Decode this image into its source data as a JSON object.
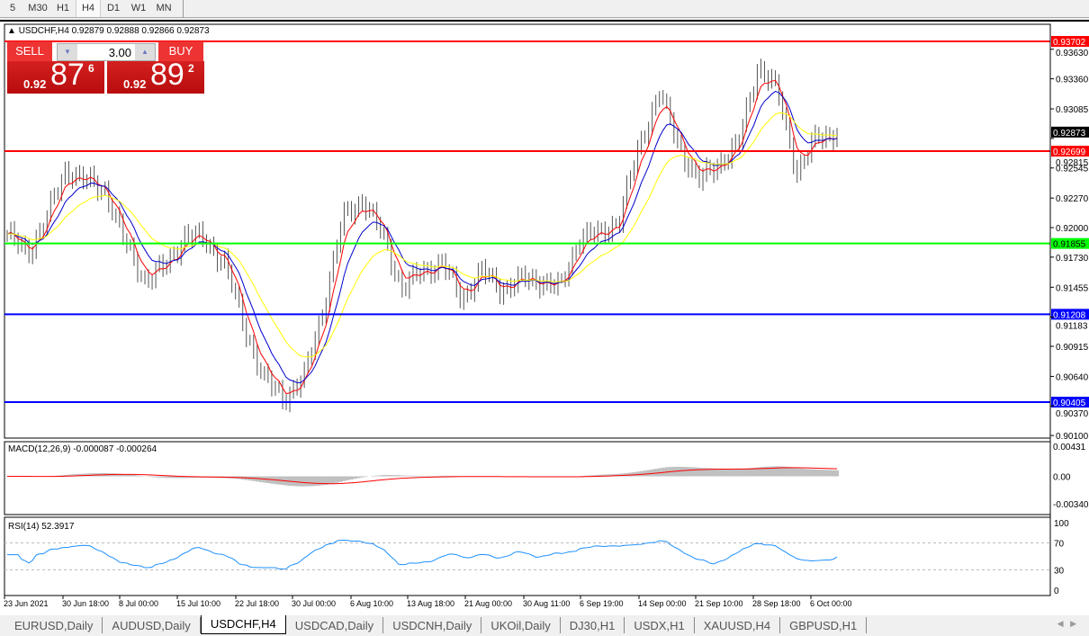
{
  "timeframes": [
    "5",
    "M30",
    "H1",
    "H4",
    "D1",
    "W1",
    "MN"
  ],
  "active_timeframe": "H4",
  "chart": {
    "symbol_line": "USDCHF,H4  0.92879 0.92888 0.92866 0.92873"
  },
  "trade_panel": {
    "sell_label": "SELL",
    "buy_label": "BUY",
    "lot": "3.00",
    "sell": {
      "prefix": "0.92",
      "big": "87",
      "sup": "6"
    },
    "buy": {
      "prefix": "0.92",
      "big": "89",
      "sup": "2"
    }
  },
  "chart_data": {
    "type": "candlestick",
    "price_axis_ticks": [
      "0.93630",
      "0.93360",
      "0.93085",
      "0.92815",
      "0.92545",
      "0.92270",
      "0.92000",
      "0.91730",
      "0.91455",
      "0.91183",
      "0.90915",
      "0.90640",
      "0.90370",
      "0.90100"
    ],
    "price_axis_values": [
      0.9363,
      0.9336,
      0.93085,
      0.92815,
      0.92545,
      0.9227,
      0.92,
      0.9173,
      0.91455,
      0.91183,
      0.90915,
      0.9064,
      0.9037,
      0.901
    ],
    "ylim": [
      0.901,
      0.9385
    ],
    "x_labels": [
      "23 Jun 2021",
      "30 Jun 18:00",
      "8 Jul 00:00",
      "15 Jul 10:00",
      "22 Jul 18:00",
      "30 Jul 00:00",
      "6 Aug 10:00",
      "13 Aug 18:00",
      "21 Aug 00:00",
      "30 Aug 11:00",
      "6 Sep 19:00",
      "14 Sep 00:00",
      "21 Sep 10:00",
      "28 Sep 18:00",
      "6 Oct 00:00"
    ],
    "approx_closes": [
      0.9194,
      0.9176,
      0.9209,
      0.9254,
      0.9242,
      0.9234,
      0.9184,
      0.9152,
      0.9164,
      0.9193,
      0.9189,
      0.9168,
      0.911,
      0.9061,
      0.9045,
      0.9061,
      0.9127,
      0.9209,
      0.9226,
      0.9193,
      0.9144,
      0.916,
      0.9168,
      0.9135,
      0.916,
      0.9144,
      0.9152,
      0.9152,
      0.9144,
      0.9193,
      0.9193,
      0.9209,
      0.9275,
      0.9324,
      0.9275,
      0.9242,
      0.9259,
      0.9275,
      0.9349,
      0.9324,
      0.925,
      0.9283,
      0.9287
    ],
    "current_price": {
      "label": "0.92873",
      "value": 0.92873,
      "color": "#000000"
    },
    "horizontal_lines": [
      {
        "label": "0.93702",
        "value": 0.93702,
        "color": "#ff0000"
      },
      {
        "label": "0.92699",
        "value": 0.92699,
        "color": "#ff0000"
      },
      {
        "label": "0.91855",
        "value": 0.91855,
        "color": "#00ff00"
      },
      {
        "label": "0.91208",
        "value": 0.91208,
        "color": "#0000ff"
      },
      {
        "label": "0.90405",
        "value": 0.90405,
        "color": "#0000ff"
      }
    ],
    "moving_average_colors": [
      "#ff0000",
      "#0000cc",
      "#ffff00"
    ],
    "macd": {
      "label": "MACD(12,26,9) -0.000087 -0.000264",
      "ticks": [
        "0.00431",
        "0.00",
        "-0.003405"
      ],
      "histogram_color": "#c0c0c0",
      "signal_color": "#ff0000"
    },
    "rsi": {
      "label": "RSI(14) 52.3917",
      "ticks": [
        "100",
        "70",
        "30",
        "0"
      ],
      "levels": [
        70,
        30
      ],
      "color": "#1e90ff"
    }
  },
  "tabs": [
    "EURUSD,Daily",
    "AUDUSD,Daily",
    "USDCHF,H4",
    "USDCAD,Daily",
    "USDCNH,Daily",
    "UKOil,Daily",
    "DJ30,H1",
    "USDX,H1",
    "XAUUSD,H4",
    "GBPUSD,H1"
  ],
  "active_tab": "USDCHF,H4"
}
